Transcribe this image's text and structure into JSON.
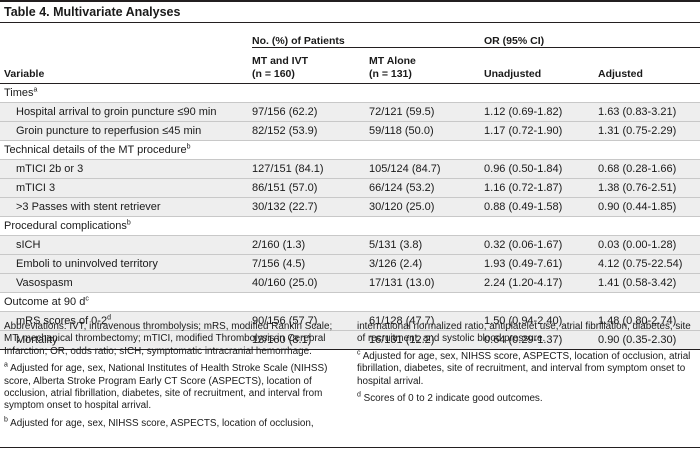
{
  "title": "Table 4. Multivariate Analyses",
  "headers": {
    "variable": "Variable",
    "group_patients": "No. (%) of Patients",
    "group_or": "OR (95% CI)",
    "mt_ivt_line1": "MT and IVT",
    "mt_ivt_line2": "(n = 160)",
    "mt_alone_line1": "MT Alone",
    "mt_alone_line2": "(n = 131)",
    "unadjusted": "Unadjusted",
    "adjusted": "Adjusted"
  },
  "rows": [
    {
      "type": "section",
      "label": "Times",
      "sup": "a"
    },
    {
      "type": "item",
      "label": "Hospital arrival to groin puncture ≤90 min",
      "mt_ivt": "97/156 (62.2)",
      "mt_alone": "72/121 (59.5)",
      "unadjusted": "1.12 (0.69-1.82)",
      "adjusted": "1.63 (0.83-3.21)"
    },
    {
      "type": "item",
      "label": "Groin puncture to reperfusion ≤45 min",
      "mt_ivt": "82/152 (53.9)",
      "mt_alone": "59/118 (50.0)",
      "unadjusted": "1.17 (0.72-1.90)",
      "adjusted": "1.31 (0.75-2.29)"
    },
    {
      "type": "section",
      "label": "Technical details of the MT procedure",
      "sup": "b"
    },
    {
      "type": "item",
      "label": "mTICI 2b or 3",
      "mt_ivt": "127/151 (84.1)",
      "mt_alone": "105/124 (84.7)",
      "unadjusted": "0.96 (0.50-1.84)",
      "adjusted": "0.68 (0.28-1.66)"
    },
    {
      "type": "item",
      "label": "mTICI 3",
      "mt_ivt": "86/151 (57.0)",
      "mt_alone": "66/124 (53.2)",
      "unadjusted": "1.16 (0.72-1.87)",
      "adjusted": "1.38 (0.76-2.51)"
    },
    {
      "type": "item",
      "label": ">3 Passes with stent retriever",
      "mt_ivt": "30/132 (22.7)",
      "mt_alone": "30/120 (25.0)",
      "unadjusted": "0.88 (0.49-1.58)",
      "adjusted": "0.90 (0.44-1.85)"
    },
    {
      "type": "section",
      "label": "Procedural complications",
      "sup": "b"
    },
    {
      "type": "item",
      "label": "sICH",
      "mt_ivt": "2/160 (1.3)",
      "mt_alone": "5/131 (3.8)",
      "unadjusted": "0.32 (0.06-1.67)",
      "adjusted": "0.03 (0.00-1.28)"
    },
    {
      "type": "item",
      "label": "Emboli to uninvolved territory",
      "mt_ivt": "7/156 (4.5)",
      "mt_alone": "3/126 (2.4)",
      "unadjusted": "1.93 (0.49-7.61)",
      "adjusted": "4.12 (0.75-22.54)"
    },
    {
      "type": "item",
      "label": "Vasospasm",
      "mt_ivt": "40/160 (25.0)",
      "mt_alone": "17/131 (13.0)",
      "unadjusted": "2.24 (1.20-4.17)",
      "adjusted": "1.41 (0.58-3.42)"
    },
    {
      "type": "section",
      "label": "Outcome at 90 d",
      "sup": "c"
    },
    {
      "type": "item",
      "label": "mRS scores of 0-2",
      "sup": "d",
      "mt_ivt": "90/156 (57.7)",
      "mt_alone": "61/128 (47.7)",
      "unadjusted": "1.50 (0.94-2.40)",
      "adjusted": "1.48 (0.80-2.74)"
    },
    {
      "type": "item",
      "label": "Mortality",
      "mt_ivt": "13/160 (8.1)",
      "mt_alone": "16/131 (12.2)",
      "unadjusted": "0.64 (0.29-1.37)",
      "adjusted": "0.90 (0.35-2.30)"
    }
  ],
  "footnotes": {
    "abbreviations": "Abbreviations: IVT, intravenous thrombolysis; mRS, modified Rankin Scale; MT, mechanical thrombectomy; mTICI, modified Thrombolysis in Cerebral Infarction; OR, odds ratio; sICH, symptomatic intracranial hemorrhage.",
    "a_mark": "a",
    "a_text": "Adjusted for age, sex, National Institutes of Health Stroke Scale (NIHSS) score, Alberta Stroke Program Early CT Score (ASPECTS), location of occlusion, atrial fibrillation, diabetes, site of recruitment, and interval from symptom onset to hospital arrival.",
    "b_mark": "b",
    "b_text_part1": "Adjusted for age, sex, NIHSS score, ASPECTS, location of occlusion,",
    "b_text_part2": "international normalized ratio, antiplatelet use, atrial fibrillation, diabetes, site of recruitment, and systolic blood pressure.",
    "c_mark": "c",
    "c_text": "Adjusted for age, sex, NIHSS score, ASPECTS, location of occlusion, atrial fibrillation, diabetes, site of recruitment, and interval from symptom onset to hospital arrival.",
    "d_mark": "d",
    "d_text": "Scores of 0 to 2 indicate good outcomes."
  }
}
